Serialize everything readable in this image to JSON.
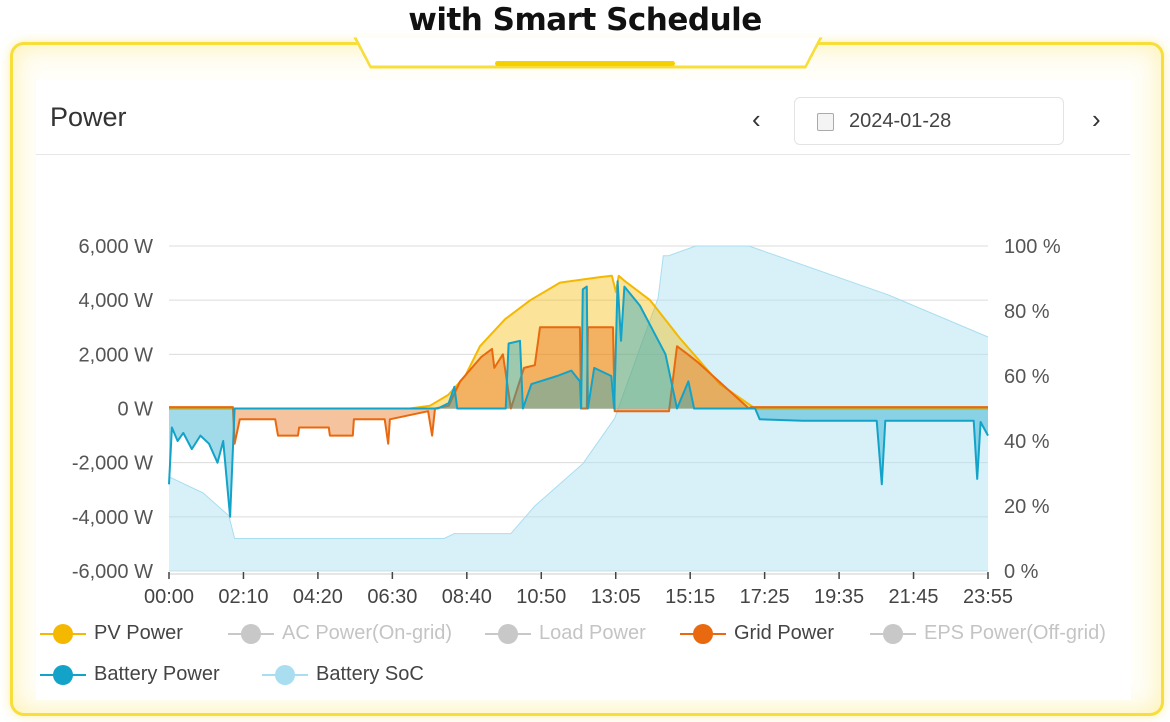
{
  "headline": "with Smart Schedule",
  "card": {
    "title": "Power",
    "prev_label": "‹",
    "next_label": "›",
    "date": "2024-01-28",
    "calendar_icon": "calendar-icon"
  },
  "colors": {
    "frame": "#f7de3a",
    "pv": "#f5b800",
    "grid": "#e8690f",
    "battery": "#13a3c9",
    "soc": "#a8def0",
    "disabled": "#c8c8c8"
  },
  "chart_data": {
    "type": "area",
    "x_ticks": [
      "00:00",
      "02:10",
      "04:20",
      "06:30",
      "08:40",
      "10:50",
      "13:05",
      "15:15",
      "17:25",
      "19:35",
      "21:45",
      "23:55"
    ],
    "y_left": {
      "ticks": [
        "6,000 W",
        "4,000 W",
        "2,000 W",
        "0 W",
        "-2,000 W",
        "-4,000 W",
        "-6,000 W"
      ],
      "range": [
        -6000,
        6000
      ],
      "unit": "W"
    },
    "y_right": {
      "ticks": [
        "100 %",
        "80 %",
        "60 %",
        "40 %",
        "20 %",
        "0 %"
      ],
      "range": [
        0,
        100
      ],
      "unit": "%"
    },
    "grid": true,
    "legend_position": "bottom",
    "legend": [
      {
        "name": "PV Power",
        "color": "#f5b800",
        "enabled": true
      },
      {
        "name": "AC Power(On-grid)",
        "color": "#c8c8c8",
        "enabled": false
      },
      {
        "name": "Load Power",
        "color": "#c8c8c8",
        "enabled": false
      },
      {
        "name": "Grid Power",
        "color": "#e8690f",
        "enabled": true
      },
      {
        "name": "EPS Power(Off-grid)",
        "color": "#c8c8c8",
        "enabled": false
      },
      {
        "name": "Battery Power",
        "color": "#13a3c9",
        "enabled": true
      },
      {
        "name": "Battery SoC",
        "color": "#a8def0",
        "enabled": true
      }
    ],
    "series": [
      {
        "name": "Battery SoC",
        "axis": "right",
        "color": "#a8def0",
        "points": [
          [
            "00:00",
            29
          ],
          [
            "01:00",
            24
          ],
          [
            "01:45",
            17
          ],
          [
            "01:55",
            10
          ],
          [
            "08:02",
            10
          ],
          [
            "08:20",
            11.5
          ],
          [
            "09:59",
            11.5
          ],
          [
            "10:41",
            20
          ],
          [
            "12:05",
            33
          ],
          [
            "13:01",
            47
          ],
          [
            "14:17",
            84
          ],
          [
            "14:26",
            97
          ],
          [
            "14:35",
            97
          ],
          [
            "15:23",
            100
          ],
          [
            "16:56",
            100
          ],
          [
            "21:00",
            85
          ],
          [
            "23:55",
            72
          ]
        ]
      },
      {
        "name": "PV Power",
        "axis": "left",
        "color": "#f5b800",
        "points": [
          [
            "00:00",
            0
          ],
          [
            "07:02",
            0
          ],
          [
            "07:37",
            100
          ],
          [
            "08:09",
            500
          ],
          [
            "08:39",
            1200
          ],
          [
            "09:05",
            2300
          ],
          [
            "09:49",
            3300
          ],
          [
            "10:33",
            4000
          ],
          [
            "11:25",
            4650
          ],
          [
            "12:35",
            4850
          ],
          [
            "12:56",
            4900
          ],
          [
            "13:03",
            4300
          ],
          [
            "13:08",
            4900
          ],
          [
            "13:19",
            4700
          ],
          [
            "14:03",
            4000
          ],
          [
            "14:55",
            2600
          ],
          [
            "16:05",
            900
          ],
          [
            "17:07",
            0
          ],
          [
            "23:55",
            0
          ]
        ]
      },
      {
        "name": "Grid Power",
        "axis": "left",
        "color": "#e8690f",
        "points": [
          [
            "00:00",
            50
          ],
          [
            "01:52",
            50
          ],
          [
            "01:55",
            -1300
          ],
          [
            "02:04",
            -400
          ],
          [
            "03:06",
            -400
          ],
          [
            "03:11",
            -1000
          ],
          [
            "03:46",
            -1000
          ],
          [
            "03:48",
            -700
          ],
          [
            "04:40",
            -700
          ],
          [
            "04:42",
            -1000
          ],
          [
            "05:22",
            -1000
          ],
          [
            "05:24",
            -400
          ],
          [
            "06:18",
            -400
          ],
          [
            "06:24",
            -1300
          ],
          [
            "06:27",
            -400
          ],
          [
            "07:34",
            -100
          ],
          [
            "07:41",
            -1000
          ],
          [
            "07:46",
            0
          ],
          [
            "08:10",
            100
          ],
          [
            "08:30",
            1000
          ],
          [
            "09:07",
            1900
          ],
          [
            "09:26",
            2200
          ],
          [
            "09:30",
            1500
          ],
          [
            "09:45",
            2000
          ],
          [
            "09:59",
            0
          ],
          [
            "10:22",
            1500
          ],
          [
            "10:41",
            1600
          ],
          [
            "10:50",
            3000
          ],
          [
            "12:00",
            3000
          ],
          [
            "12:02",
            0
          ],
          [
            "12:12",
            0
          ],
          [
            "12:14",
            3000
          ],
          [
            "12:58",
            3000
          ],
          [
            "13:01",
            -100
          ],
          [
            "14:36",
            -100
          ],
          [
            "14:50",
            2300
          ],
          [
            "15:09",
            2000
          ],
          [
            "15:27",
            1700
          ],
          [
            "16:56",
            0
          ],
          [
            "17:00",
            50
          ],
          [
            "23:55",
            50
          ]
        ]
      },
      {
        "name": "Battery Power",
        "axis": "left",
        "color": "#13a3c9",
        "points": [
          [
            "00:00",
            -2800
          ],
          [
            "00:05",
            -700
          ],
          [
            "00:15",
            -1200
          ],
          [
            "00:25",
            -900
          ],
          [
            "00:40",
            -1500
          ],
          [
            "00:55",
            -1000
          ],
          [
            "01:10",
            -1300
          ],
          [
            "01:25",
            -2000
          ],
          [
            "01:35",
            -1200
          ],
          [
            "01:47",
            -4000
          ],
          [
            "01:55",
            0
          ],
          [
            "07:51",
            0
          ],
          [
            "08:10",
            200
          ],
          [
            "08:20",
            800
          ],
          [
            "08:25",
            0
          ],
          [
            "09:50",
            0
          ],
          [
            "09:55",
            2400
          ],
          [
            "10:15",
            2500
          ],
          [
            "10:20",
            0
          ],
          [
            "10:35",
            900
          ],
          [
            "11:20",
            1200
          ],
          [
            "11:45",
            1400
          ],
          [
            "12:00",
            1000
          ],
          [
            "12:02",
            0
          ],
          [
            "12:05",
            4400
          ],
          [
            "12:12",
            4500
          ],
          [
            "12:14",
            0
          ],
          [
            "12:25",
            1500
          ],
          [
            "12:55",
            1200
          ],
          [
            "13:00",
            0
          ],
          [
            "13:06",
            4700
          ],
          [
            "13:12",
            2500
          ],
          [
            "13:18",
            4500
          ],
          [
            "13:45",
            3800
          ],
          [
            "14:05",
            3000
          ],
          [
            "14:30",
            2000
          ],
          [
            "14:50",
            0
          ],
          [
            "15:10",
            1000
          ],
          [
            "15:20",
            0
          ],
          [
            "17:07",
            0
          ],
          [
            "17:15",
            -400
          ],
          [
            "18:30",
            -450
          ],
          [
            "20:40",
            -450
          ],
          [
            "20:49",
            -2800
          ],
          [
            "20:55",
            -450
          ],
          [
            "23:30",
            -450
          ],
          [
            "23:36",
            -2600
          ],
          [
            "23:42",
            -500
          ],
          [
            "23:55",
            -1000
          ]
        ]
      }
    ]
  }
}
